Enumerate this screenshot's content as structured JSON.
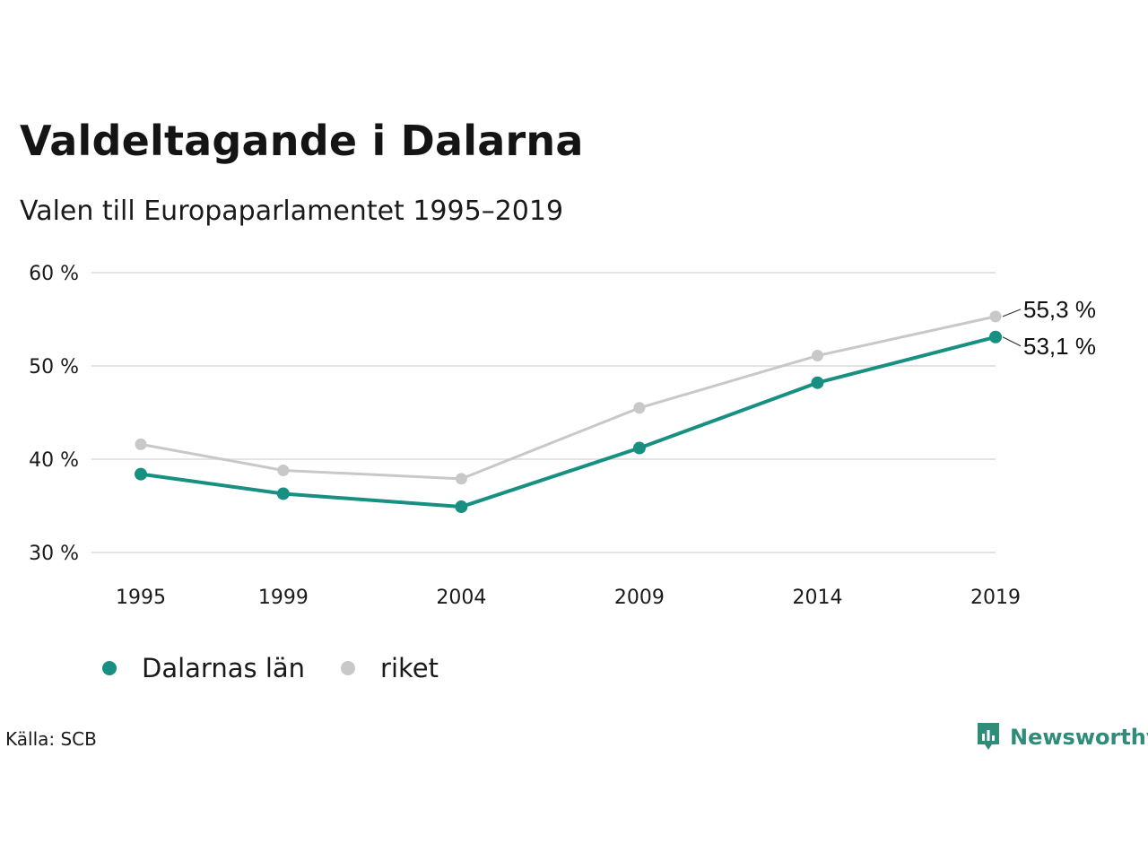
{
  "title": "Valdeltagande i Dalarna",
  "subtitle": "Valen till Europaparlamentet 1995–2019",
  "source": "Källa: SCB",
  "brand": {
    "name": "Newsworthy",
    "icon": "newsworthy-logo-icon",
    "color": "#2f8c79"
  },
  "legend": [
    {
      "label": "Dalarnas län",
      "color": "#178f81"
    },
    {
      "label": "riket",
      "color": "#c8c8c8"
    }
  ],
  "chart_data": {
    "type": "line",
    "categories": [
      "1995",
      "1999",
      "2004",
      "2009",
      "2014",
      "2019"
    ],
    "x_numeric": [
      1995,
      1999,
      2004,
      2009,
      2014,
      2019
    ],
    "y_ticks": [
      30,
      40,
      50,
      60
    ],
    "y_tick_labels": [
      "30 %",
      "40 %",
      "50 %",
      "60 %"
    ],
    "ylim": [
      30,
      60
    ],
    "grid": true,
    "legend_position": "bottom-left",
    "series": [
      {
        "name": "Dalarnas län",
        "color": "#178f81",
        "values": [
          38.4,
          36.3,
          34.9,
          41.2,
          48.2,
          53.1
        ],
        "end_label": "53,1 %"
      },
      {
        "name": "riket",
        "color": "#c8c8c8",
        "values": [
          41.6,
          38.8,
          37.9,
          45.5,
          51.1,
          55.3
        ],
        "end_label": "55,3 %"
      }
    ]
  }
}
